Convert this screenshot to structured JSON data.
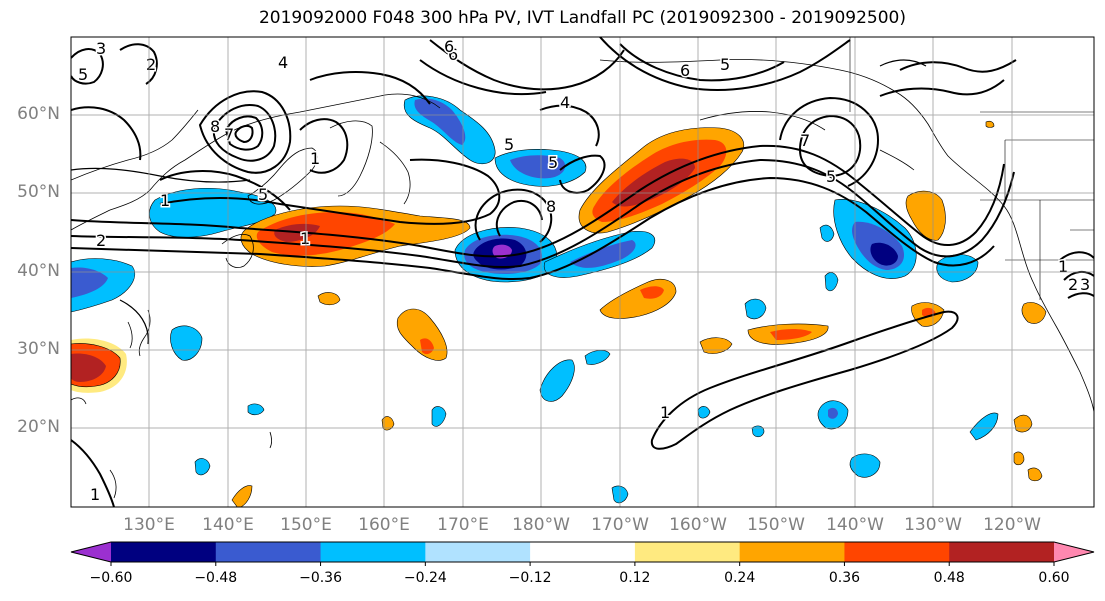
{
  "title": "2019092000 F048 300 hPa PV, IVT Landfall PC (2019092300 - 2019092500)",
  "lat_labels": [
    "60°N",
    "50°N",
    "40°N",
    "30°N",
    "20°N"
  ],
  "lon_labels": [
    "130°E",
    "140°E",
    "150°E",
    "160°E",
    "170°E",
    "180°W",
    "170°W",
    "160°W",
    "150°W",
    "140°W",
    "130°W",
    "120°W"
  ],
  "colorbar": {
    "colors": [
      "#9b30d0",
      "#000080",
      "#3a5bd0",
      "#00bfff",
      "#b0e2ff",
      "#ffffff",
      "#ffea80",
      "#ffa500",
      "#ff4500",
      "#b22222",
      "#ff88b0"
    ],
    "tick_labels": [
      "−0.60",
      "−0.48",
      "−0.36",
      "−0.24",
      "−0.12",
      "0.12",
      "0.24",
      "0.36",
      "0.48",
      "0.60"
    ]
  },
  "pv_contour_labels": [
    "3",
    "5",
    "2",
    "4",
    "6",
    "7",
    "8",
    "1",
    "1",
    "5",
    "2",
    "5",
    "6",
    "4",
    "5",
    "8",
    "6",
    "5",
    "7",
    "5",
    "1",
    "1",
    "1",
    "2",
    "3",
    "1"
  ],
  "legend_colors": {
    "pos_light": "#ffea80",
    "pos_mid": "#ffa500",
    "pos_strong": "#ff4500",
    "pos_max": "#b22222",
    "neg_light": "#b0e2ff",
    "neg_mid": "#00bfff",
    "neg_strong": "#3a5bd0",
    "neg_max": "#000080",
    "neg_extreme": "#9b30d0"
  }
}
